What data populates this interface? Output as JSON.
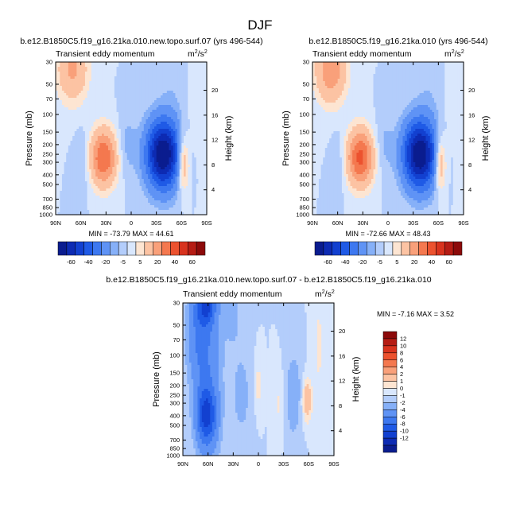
{
  "figure_title": "DJF",
  "chart_data": [
    {
      "type": "heatmap",
      "title": "b.e12.B1850C5.f19_g16.21ka.010.new.topo.surf.07 (yrs 496-544)",
      "subtitle": "Transient eddy momentum",
      "units_base": "m",
      "units_exp_num": "2",
      "units_exp_den": "2",
      "xlabel": "",
      "ylabel": "Pressure (mb)",
      "ylabel_right": "Height (km)",
      "x_ticks": [
        "90N",
        "60N",
        "30N",
        "0",
        "30S",
        "60S",
        "90S"
      ],
      "x_range": [
        90,
        -90
      ],
      "y_ticks": [
        "30",
        "50",
        "70",
        "100",
        "150",
        "200",
        "250",
        "300",
        "400",
        "500",
        "700",
        "850",
        "1000"
      ],
      "y_range": [
        1000,
        30
      ],
      "height_ticks": [
        "4",
        "8",
        "12",
        "16",
        "20"
      ],
      "stats": "MIN = -73.79  MAX =  44.61",
      "min": -73.79,
      "max": 44.61,
      "features": [
        {
          "lat": 33,
          "p": 270,
          "value": 40,
          "lat_width": 11,
          "lnp_width": 0.45
        },
        {
          "lat": 70,
          "p": 35,
          "value": 22,
          "lat_width": 13,
          "lnp_width": 0.55
        },
        {
          "lat": -38,
          "p": 250,
          "value": -72,
          "lat_width": 14,
          "lnp_width": 0.55
        },
        {
          "lat": -62,
          "p": 300,
          "value": 26,
          "lat_width": 5,
          "lnp_width": 0.45
        },
        {
          "lat": 58,
          "p": 300,
          "value": -6,
          "lat_width": 6,
          "lnp_width": 0.5
        },
        {
          "lat": 5,
          "p": 200,
          "value": -7,
          "lat_width": 8,
          "lnp_width": 0.5
        },
        {
          "lat": -50,
          "p": 40,
          "value": -4,
          "lat_width": 12,
          "lnp_width": 0.7
        },
        {
          "lat": -78,
          "p": 60,
          "value": 4,
          "lat_width": 8,
          "lnp_width": 1.0
        }
      ]
    },
    {
      "type": "heatmap",
      "title": "b.e12.B1850C5.f19_g16.21ka.010 (yrs 496-544)",
      "subtitle": "Transient eddy momentum",
      "units_base": "m",
      "units_exp_num": "2",
      "units_exp_den": "2",
      "xlabel": "",
      "ylabel": "Pressure (mb)",
      "ylabel_right": "Height (km)",
      "x_ticks": [
        "90N",
        "60N",
        "30N",
        "0",
        "30S",
        "60S",
        "90S"
      ],
      "x_range": [
        90,
        -90
      ],
      "y_ticks": [
        "30",
        "50",
        "70",
        "100",
        "150",
        "200",
        "250",
        "300",
        "400",
        "500",
        "700",
        "850",
        "1000"
      ],
      "y_range": [
        1000,
        30
      ],
      "height_ticks": [
        "4",
        "8",
        "12",
        "16",
        "20"
      ],
      "stats": "MIN = -72.66  MAX =  48.43",
      "min": -72.66,
      "max": 48.43,
      "features": [
        {
          "lat": 33,
          "p": 270,
          "value": 43,
          "lat_width": 11,
          "lnp_width": 0.45
        },
        {
          "lat": 68,
          "p": 35,
          "value": 28,
          "lat_width": 13,
          "lnp_width": 0.55
        },
        {
          "lat": -38,
          "p": 250,
          "value": -71,
          "lat_width": 14,
          "lnp_width": 0.55
        },
        {
          "lat": -62,
          "p": 300,
          "value": 26,
          "lat_width": 5,
          "lnp_width": 0.45
        },
        {
          "lat": 58,
          "p": 300,
          "value": -5,
          "lat_width": 6,
          "lnp_width": 0.5
        },
        {
          "lat": 5,
          "p": 200,
          "value": -6,
          "lat_width": 8,
          "lnp_width": 0.5
        },
        {
          "lat": -50,
          "p": 40,
          "value": -4,
          "lat_width": 12,
          "lnp_width": 0.7
        },
        {
          "lat": -78,
          "p": 60,
          "value": 4,
          "lat_width": 8,
          "lnp_width": 1.0
        }
      ]
    },
    {
      "type": "heatmap",
      "title": "b.e12.B1850C5.f19_g16.21ka.010.new.topo.surf.07 - b.e12.B1850C5.f19_g16.21ka.010",
      "subtitle": "Transient eddy momentum",
      "units_base": "m",
      "units_exp_num": "2",
      "units_exp_den": "2",
      "xlabel": "",
      "ylabel": "Pressure (mb)",
      "ylabel_right": "Height (km)",
      "x_ticks": [
        "90N",
        "60N",
        "30N",
        "0",
        "30S",
        "60S",
        "90S"
      ],
      "x_range": [
        90,
        -90
      ],
      "y_ticks": [
        "30",
        "50",
        "70",
        "100",
        "150",
        "200",
        "250",
        "300",
        "400",
        "500",
        "700",
        "850",
        "1000"
      ],
      "y_range": [
        1000,
        30
      ],
      "height_ticks": [
        "4",
        "8",
        "12",
        "16",
        "20"
      ],
      "stats": "MIN = -7.16  MAX =  3.52",
      "min": -7.16,
      "max": 3.52,
      "features": [
        {
          "lat": 62,
          "p": 400,
          "value": -7,
          "lat_width": 8,
          "lnp_width": 0.45
        },
        {
          "lat": 62,
          "p": 32,
          "value": -6,
          "lat_width": 8,
          "lnp_width": 0.3
        },
        {
          "lat": 60,
          "p": 150,
          "value": -3,
          "lat_width": 12,
          "lnp_width": 1.6
        },
        {
          "lat": 72,
          "p": 60,
          "value": -3,
          "lat_width": 10,
          "lnp_width": 0.8
        },
        {
          "lat": -58,
          "p": 280,
          "value": 3.5,
          "lat_width": 4,
          "lnp_width": 0.35
        },
        {
          "lat": 0,
          "p": 200,
          "value": 1.5,
          "lat_width": 3,
          "lnp_width": 0.4
        },
        {
          "lat": 20,
          "p": 250,
          "value": -1.5,
          "lat_width": 8,
          "lnp_width": 0.7
        },
        {
          "lat": -42,
          "p": 250,
          "value": -2,
          "lat_width": 7,
          "lnp_width": 0.7
        },
        {
          "lat": -25,
          "p": 300,
          "value": 1.2,
          "lat_width": 4,
          "lnp_width": 0.5
        },
        {
          "lat": -72,
          "p": 80,
          "value": 1.2,
          "lat_width": 5,
          "lnp_width": 1.0
        },
        {
          "lat": 30,
          "p": 40,
          "value": -1.2,
          "lat_width": 8,
          "lnp_width": 0.6
        }
      ]
    }
  ],
  "colorbars": [
    {
      "orientation": "horizontal",
      "labels": [
        "-60",
        "-40",
        "-20",
        "-5",
        "5",
        "20",
        "40",
        "60"
      ],
      "levels": [
        -70,
        -60,
        -50,
        -40,
        -30,
        -20,
        -10,
        -5,
        0,
        5,
        10,
        20,
        30,
        40,
        50,
        60,
        70
      ],
      "colors": [
        "#0a1c8f",
        "#0d2bb3",
        "#1240d0",
        "#1f5ae6",
        "#3d78f0",
        "#5f93f5",
        "#86b0f8",
        "#b3cdfb",
        "#d9e7fd",
        "#fde5d2",
        "#fcc3a3",
        "#f9a07a",
        "#f4784f",
        "#ec522f",
        "#d8331e",
        "#b51c14",
        "#8c0a0a"
      ]
    },
    {
      "orientation": "horizontal",
      "labels": [
        "-60",
        "-40",
        "-20",
        "-5",
        "5",
        "20",
        "40",
        "60"
      ],
      "levels": [
        -70,
        -60,
        -50,
        -40,
        -30,
        -20,
        -10,
        -5,
        0,
        5,
        10,
        20,
        30,
        40,
        50,
        60,
        70
      ],
      "colors": [
        "#0a1c8f",
        "#0d2bb3",
        "#1240d0",
        "#1f5ae6",
        "#3d78f0",
        "#5f93f5",
        "#86b0f8",
        "#b3cdfb",
        "#d9e7fd",
        "#fde5d2",
        "#fcc3a3",
        "#f9a07a",
        "#f4784f",
        "#ec522f",
        "#d8331e",
        "#b51c14",
        "#8c0a0a"
      ]
    },
    {
      "orientation": "vertical",
      "labels": [
        "12",
        "10",
        "8",
        "6",
        "4",
        "2",
        "1",
        "0",
        "-1",
        "-2",
        "-4",
        "-6",
        "-8",
        "-10",
        "-12"
      ],
      "levels": [
        -14,
        -12,
        -10,
        -8,
        -6,
        -4,
        -2,
        -1,
        0,
        1,
        2,
        4,
        6,
        8,
        10,
        12,
        14
      ],
      "colors": [
        "#0a1c8f",
        "#0d2bb3",
        "#1240d0",
        "#1f5ae6",
        "#3d78f0",
        "#5f93f5",
        "#86b0f8",
        "#b3cdfb",
        "#d9e7fd",
        "#fde5d2",
        "#fcc3a3",
        "#f9a07a",
        "#f4784f",
        "#ec522f",
        "#d8331e",
        "#b51c14",
        "#8c0a0a"
      ]
    }
  ]
}
